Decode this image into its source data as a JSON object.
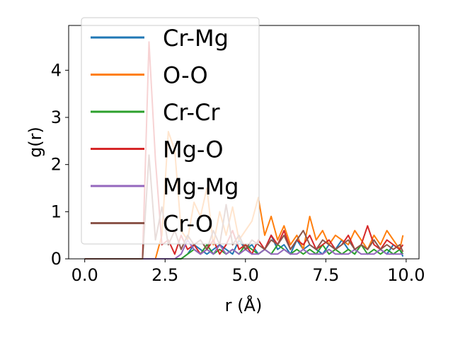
{
  "chart_data": {
    "type": "line",
    "title": "",
    "xlabel": "r (Å)",
    "ylabel": "g(r)",
    "xlim": [
      -0.5,
      10.4
    ],
    "ylim": [
      0,
      4.95
    ],
    "xticks": [
      0.0,
      2.5,
      5.0,
      7.5,
      10.0
    ],
    "xtick_labels": [
      "0.0",
      "2.5",
      "5.0",
      "7.5",
      "10.0"
    ],
    "yticks": [
      0,
      1,
      2,
      3,
      4
    ],
    "ytick_labels": [
      "0",
      "1",
      "2",
      "3",
      "4"
    ],
    "grid": false,
    "legend_position": "upper-left",
    "x": [
      0.0,
      0.5,
      1.0,
      1.5,
      1.8,
      2.0,
      2.2,
      2.4,
      2.6,
      2.8,
      3.0,
      3.2,
      3.4,
      3.6,
      3.8,
      4.0,
      4.2,
      4.4,
      4.6,
      4.8,
      5.0,
      5.2,
      5.4,
      5.6,
      5.8,
      6.0,
      6.2,
      6.4,
      6.6,
      6.8,
      7.0,
      7.2,
      7.4,
      7.6,
      7.8,
      8.0,
      8.2,
      8.4,
      8.6,
      8.8,
      9.0,
      9.2,
      9.4,
      9.6,
      9.8,
      9.9
    ],
    "series": [
      {
        "name": "Cr-Mg",
        "color": "#1f77b4",
        "values": [
          0,
          0,
          0,
          0,
          0,
          0,
          0,
          0,
          0,
          0,
          0,
          0.1,
          0.3,
          0.2,
          0.1,
          0.2,
          0.3,
          0.2,
          0.1,
          0.4,
          0.2,
          0.3,
          0.1,
          0.2,
          0.5,
          0.2,
          0.3,
          0.1,
          0.4,
          0.2,
          0.3,
          0.2,
          0.1,
          0.3,
          0.2,
          0.4,
          0.2,
          0.1,
          0.3,
          0.2,
          0.4,
          0.2,
          0.1,
          0.3,
          0.2,
          0.05
        ]
      },
      {
        "name": "O-O",
        "color": "#ff7f0e",
        "values": [
          0,
          0,
          0,
          0,
          0,
          0,
          0,
          0.5,
          2.7,
          2.3,
          0.6,
          0.4,
          1.2,
          0.9,
          1.5,
          0.3,
          1.0,
          0.5,
          1.1,
          0.4,
          0.6,
          0.8,
          1.3,
          0.5,
          0.9,
          0.4,
          0.7,
          0.3,
          0.5,
          0.2,
          0.9,
          0.4,
          0.6,
          0.3,
          0.5,
          0.4,
          0.3,
          0.6,
          0.4,
          0.2,
          0.5,
          0.3,
          0.6,
          0.4,
          0.2,
          0.5
        ]
      },
      {
        "name": "Cr-Cr",
        "color": "#2ca02c",
        "values": [
          0,
          0,
          0,
          0,
          0,
          0,
          0,
          0,
          0,
          0,
          0,
          0.1,
          0.2,
          0.1,
          0.3,
          0.1,
          0.2,
          0.1,
          0.2,
          0.1,
          0.3,
          0.2,
          0.1,
          0.2,
          0.1,
          0.3,
          0.2,
          0.1,
          0.2,
          0.1,
          0.2,
          0.1,
          0.3,
          0.1,
          0.2,
          0.1,
          0.2,
          0.1,
          0.3,
          0.1,
          0.2,
          0.1,
          0.2,
          0.1,
          0.2,
          0.1
        ]
      },
      {
        "name": "Mg-O",
        "color": "#d62728",
        "values": [
          0,
          0,
          0,
          0,
          0,
          4.6,
          2.1,
          0.3,
          0.4,
          0.1,
          0.5,
          0.2,
          0.3,
          0.1,
          0.2,
          0.4,
          0.1,
          0.3,
          0.6,
          0.2,
          0.3,
          0.1,
          0.4,
          0.2,
          0.5,
          0.3,
          0.6,
          0.2,
          0.4,
          0.3,
          0.5,
          0.2,
          0.3,
          0.4,
          0.2,
          0.3,
          0.5,
          0.2,
          0.3,
          0.7,
          0.3,
          0.2,
          0.4,
          0.3,
          0.2,
          0.3
        ]
      },
      {
        "name": "Mg-Mg",
        "color": "#9467bd",
        "values": [
          0,
          0,
          0,
          0,
          0,
          0,
          0,
          0,
          0,
          0,
          0.1,
          0.4,
          0.2,
          0.1,
          0.2,
          0.1,
          0.3,
          0.1,
          0.2,
          0.1,
          0.2,
          0.1,
          0.1,
          0.2,
          0.1,
          0.1,
          0.2,
          0.1,
          0.1,
          0.2,
          0.1,
          0.1,
          0.1,
          0.2,
          0.1,
          0.1,
          0.1,
          0.2,
          0.1,
          0.1,
          0.1,
          0.2,
          0.1,
          0.1,
          0.1,
          0.1
        ]
      },
      {
        "name": "Cr-O",
        "color": "#8c564b",
        "values": [
          0,
          0,
          0,
          0,
          0,
          2.2,
          0.4,
          1.1,
          0.3,
          0.6,
          0.2,
          0.5,
          0.3,
          0.4,
          0.2,
          0.6,
          0.3,
          1.15,
          0.3,
          0.5,
          0.2,
          0.4,
          0.3,
          0.2,
          0.4,
          0.3,
          0.5,
          0.2,
          0.4,
          0.6,
          0.3,
          0.2,
          0.4,
          0.3,
          0.2,
          0.3,
          0.4,
          0.2,
          0.3,
          0.2,
          0.4,
          0.2,
          0.3,
          0.2,
          0.3,
          0.15
        ]
      }
    ]
  }
}
